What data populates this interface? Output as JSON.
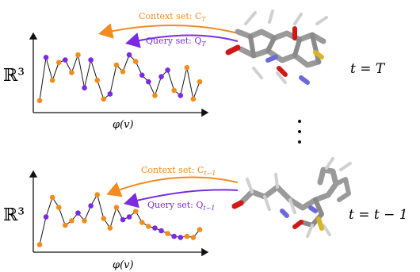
{
  "colors": {
    "context": "#f28c1e",
    "query": "#7a2be2",
    "line": "#111111",
    "axis": "#111111",
    "mol_gray": "#9a9a9a",
    "mol_dark": "#5c5c5c",
    "mol_red": "#d01818",
    "mol_blue": "#6a6ad8",
    "mol_yellow": "#d8b428"
  },
  "top_panel": {
    "space_label": "ℝ³",
    "x_label": "φ(v)",
    "context_label": "Context set: C",
    "context_sub": "T",
    "query_label": "Query set: Q",
    "query_sub": "T",
    "time_label": "t = T"
  },
  "bottom_panel": {
    "space_label": "ℝ³",
    "x_label": "φ(v)",
    "context_label": "Context set: C",
    "context_sub": "t−1",
    "query_label": "Query set: Q",
    "query_sub": "t−1",
    "time_label": "t = t − 1"
  },
  "ellipsis_icon": "vertical-dots",
  "top_series": [
    {
      "v": 0.05,
      "set": "context"
    },
    {
      "v": 0.9,
      "set": "query"
    },
    {
      "v": 0.45,
      "set": "context"
    },
    {
      "v": 0.8,
      "set": "context"
    },
    {
      "v": 0.85,
      "set": "query"
    },
    {
      "v": 0.6,
      "set": "context"
    },
    {
      "v": 0.95,
      "set": "context"
    },
    {
      "v": 0.3,
      "set": "query"
    },
    {
      "v": 0.85,
      "set": "query"
    },
    {
      "v": 0.45,
      "set": "context"
    },
    {
      "v": 0.08,
      "set": "context"
    },
    {
      "v": 0.18,
      "set": "query"
    },
    {
      "v": 0.75,
      "set": "context"
    },
    {
      "v": 0.62,
      "set": "context"
    },
    {
      "v": 0.95,
      "set": "query"
    },
    {
      "v": 0.82,
      "set": "context"
    },
    {
      "v": 0.55,
      "set": "query"
    },
    {
      "v": 0.42,
      "set": "query"
    },
    {
      "v": 0.15,
      "set": "context"
    },
    {
      "v": 0.52,
      "set": "query"
    },
    {
      "v": 0.65,
      "set": "query"
    },
    {
      "v": 0.25,
      "set": "context"
    },
    {
      "v": 0.15,
      "set": "query"
    },
    {
      "v": 0.7,
      "set": "context"
    },
    {
      "v": 0.08,
      "set": "context"
    },
    {
      "v": 0.42,
      "set": "context"
    }
  ],
  "bottom_series": [
    {
      "v": 0.05,
      "set": "context"
    },
    {
      "v": 0.55,
      "set": "query"
    },
    {
      "v": 0.9,
      "set": "context"
    },
    {
      "v": 0.72,
      "set": "context"
    },
    {
      "v": 0.4,
      "set": "context"
    },
    {
      "v": 0.48,
      "set": "context"
    },
    {
      "v": 0.62,
      "set": "query"
    },
    {
      "v": 0.48,
      "set": "context"
    },
    {
      "v": 0.75,
      "set": "query"
    },
    {
      "v": 0.95,
      "set": "context"
    },
    {
      "v": 0.52,
      "set": "context"
    },
    {
      "v": 0.35,
      "set": "context"
    },
    {
      "v": 0.72,
      "set": "context"
    },
    {
      "v": 0.5,
      "set": "query"
    },
    {
      "v": 0.55,
      "set": "query"
    },
    {
      "v": 0.65,
      "set": "context"
    },
    {
      "v": 0.45,
      "set": "context"
    },
    {
      "v": 0.38,
      "set": "context"
    },
    {
      "v": 0.35,
      "set": "query"
    },
    {
      "v": 0.3,
      "set": "query"
    },
    {
      "v": 0.25,
      "set": "context"
    },
    {
      "v": 0.2,
      "set": "query"
    },
    {
      "v": 0.18,
      "set": "query"
    },
    {
      "v": 0.2,
      "set": "context"
    },
    {
      "v": 0.18,
      "set": "context"
    },
    {
      "v": 0.32,
      "set": "context"
    }
  ]
}
